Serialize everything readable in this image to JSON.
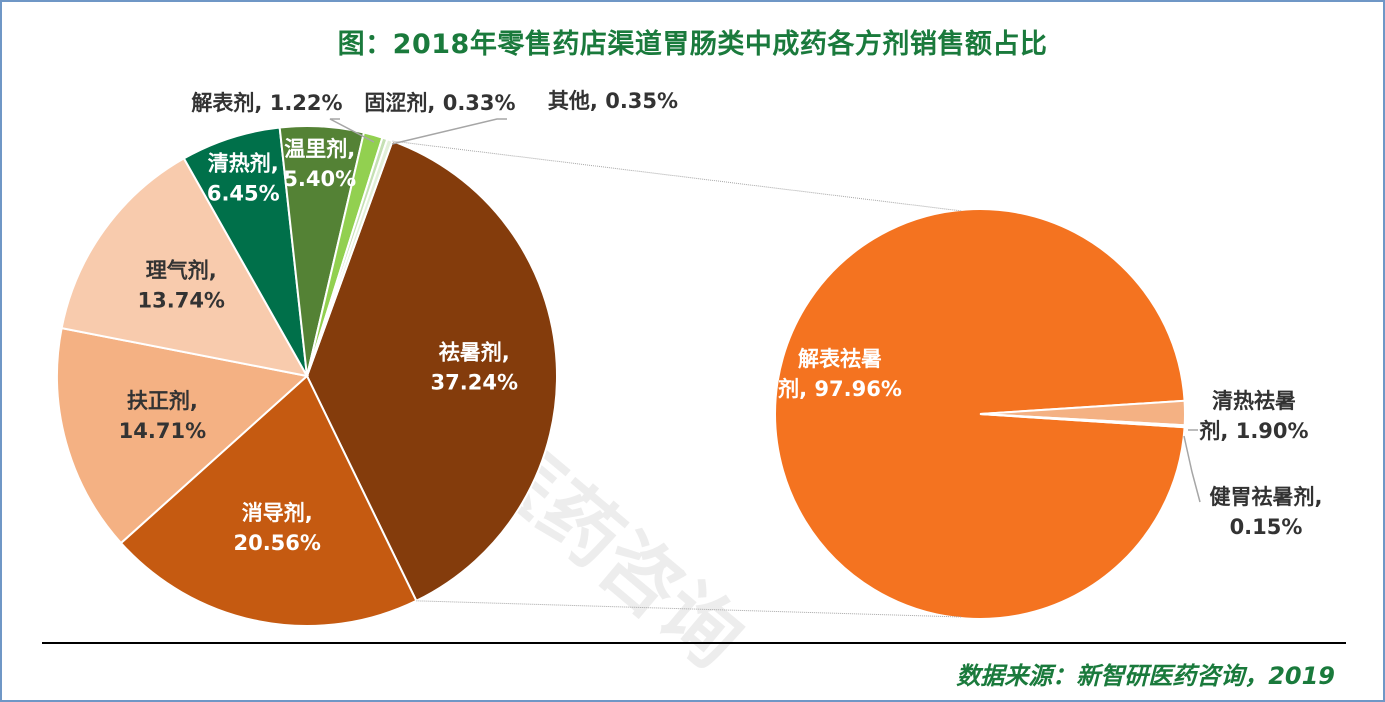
{
  "title": "图：2018年零售药店渠道胃肠类中成药各方剂销售额占比",
  "source": "数据来源：新智研医药咨询，2019",
  "watermark": "新智研医药咨询",
  "colors": {
    "title": "#1a7a3c",
    "source": "#1a7a3c",
    "frame": "#6f97c6"
  },
  "chart_data": [
    {
      "type": "pie",
      "title": "",
      "slices": [
        {
          "name": "祛暑剂",
          "value": 37.24,
          "label_lines": [
            "祛暑剂,",
            "37.24%"
          ],
          "color": "#843c0c"
        },
        {
          "name": "消导剂",
          "value": 20.56,
          "label_lines": [
            "消导剂,",
            "20.56%"
          ],
          "color": "#c55a11"
        },
        {
          "name": "扶正剂",
          "value": 14.71,
          "label_lines": [
            "扶正剂,",
            "14.71%"
          ],
          "color": "#f4b183"
        },
        {
          "name": "理气剂",
          "value": 13.74,
          "label_lines": [
            "理气剂,",
            "13.74%"
          ],
          "color": "#f8cbad"
        },
        {
          "name": "清热剂",
          "value": 6.45,
          "label_lines": [
            "清热剂,",
            "6.45%"
          ],
          "color": "#00704a"
        },
        {
          "name": "温里剂",
          "value": 5.4,
          "label_lines": [
            "温里剂,",
            "5.40%"
          ],
          "color": "#548235"
        },
        {
          "name": "解表剂",
          "value": 1.22,
          "label_lines": [
            "解表剂, 1.22%"
          ],
          "color": "#92d050"
        },
        {
          "name": "固涩剂",
          "value": 0.33,
          "label_lines": [
            "固涩剂, 0.33%"
          ],
          "color": "#c5e0b4"
        },
        {
          "name": "其他",
          "value": 0.35,
          "label_lines": [
            "其他, 0.35%"
          ],
          "color": "#e2f0d9"
        }
      ]
    },
    {
      "type": "pie",
      "title": "",
      "slices": [
        {
          "name": "解表祛暑剂",
          "value": 97.96,
          "label_lines": [
            "解表祛暑",
            "剂, 97.96%"
          ],
          "color": "#f47320"
        },
        {
          "name": "清热祛暑剂",
          "value": 1.9,
          "label_lines": [
            "清热祛暑",
            "剂, 1.90%"
          ],
          "color": "#f4b183"
        },
        {
          "name": "健胃祛暑剂",
          "value": 0.15,
          "label_lines": [
            "健胃祛暑剂,",
            "0.15%"
          ],
          "color": "#fbe5d6"
        }
      ]
    }
  ]
}
